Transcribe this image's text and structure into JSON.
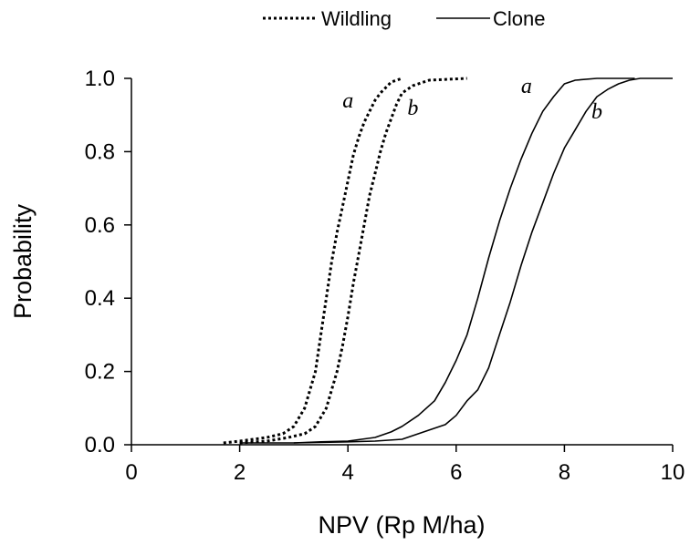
{
  "chart_data": {
    "type": "line",
    "title": "",
    "xlabel": "NPV (Rp M/ha)",
    "ylabel": "Probability",
    "xlim": [
      0,
      10
    ],
    "ylim": [
      0,
      1
    ],
    "x_ticks": [
      0,
      2,
      4,
      6,
      8,
      10
    ],
    "y_ticks": [
      "0.0",
      "0.2",
      "0.4",
      "0.6",
      "0.8",
      "1.0"
    ],
    "grid": false,
    "legend": {
      "placement": "top-center",
      "entries": [
        {
          "label": "Wildling",
          "style": "dotted"
        },
        {
          "label": "Clone",
          "style": "solid"
        }
      ]
    },
    "series": [
      {
        "name": "Wildling a",
        "group": "Wildling",
        "label": "a",
        "style": "dotted",
        "points": [
          [
            1.7,
            0.005
          ],
          [
            2.0,
            0.01
          ],
          [
            2.5,
            0.02
          ],
          [
            2.8,
            0.03
          ],
          [
            3.0,
            0.05
          ],
          [
            3.2,
            0.1
          ],
          [
            3.4,
            0.2
          ],
          [
            3.5,
            0.3
          ],
          [
            3.6,
            0.4
          ],
          [
            3.7,
            0.5
          ],
          [
            3.8,
            0.58
          ],
          [
            3.9,
            0.65
          ],
          [
            4.0,
            0.72
          ],
          [
            4.1,
            0.79
          ],
          [
            4.2,
            0.84
          ],
          [
            4.3,
            0.88
          ],
          [
            4.4,
            0.91
          ],
          [
            4.5,
            0.94
          ],
          [
            4.6,
            0.96
          ],
          [
            4.7,
            0.975
          ],
          [
            4.8,
            0.99
          ],
          [
            4.9,
            0.995
          ],
          [
            5.0,
            1.0
          ]
        ]
      },
      {
        "name": "Wildling b",
        "group": "Wildling",
        "label": "b",
        "style": "dotted",
        "points": [
          [
            2.0,
            0.005
          ],
          [
            2.5,
            0.01
          ],
          [
            2.9,
            0.02
          ],
          [
            3.2,
            0.03
          ],
          [
            3.4,
            0.05
          ],
          [
            3.6,
            0.1
          ],
          [
            3.8,
            0.2
          ],
          [
            3.9,
            0.27
          ],
          [
            4.0,
            0.35
          ],
          [
            4.1,
            0.44
          ],
          [
            4.2,
            0.52
          ],
          [
            4.3,
            0.6
          ],
          [
            4.4,
            0.68
          ],
          [
            4.5,
            0.74
          ],
          [
            4.6,
            0.8
          ],
          [
            4.7,
            0.85
          ],
          [
            4.8,
            0.89
          ],
          [
            4.9,
            0.93
          ],
          [
            5.0,
            0.96
          ],
          [
            5.2,
            0.98
          ],
          [
            5.5,
            0.995
          ],
          [
            6.2,
            1.0
          ]
        ]
      },
      {
        "name": "Clone a",
        "group": "Clone",
        "label": "a",
        "style": "solid",
        "points": [
          [
            2.0,
            0.005
          ],
          [
            3.0,
            0.005
          ],
          [
            3.5,
            0.008
          ],
          [
            4.0,
            0.01
          ],
          [
            4.5,
            0.02
          ],
          [
            4.8,
            0.035
          ],
          [
            5.0,
            0.05
          ],
          [
            5.3,
            0.08
          ],
          [
            5.6,
            0.12
          ],
          [
            5.8,
            0.17
          ],
          [
            6.0,
            0.23
          ],
          [
            6.2,
            0.3
          ],
          [
            6.4,
            0.4
          ],
          [
            6.6,
            0.51
          ],
          [
            6.8,
            0.61
          ],
          [
            7.0,
            0.7
          ],
          [
            7.2,
            0.78
          ],
          [
            7.4,
            0.85
          ],
          [
            7.6,
            0.91
          ],
          [
            7.8,
            0.95
          ],
          [
            8.0,
            0.985
          ],
          [
            8.2,
            0.995
          ],
          [
            8.6,
            1.0
          ],
          [
            9.3,
            1.0
          ]
        ]
      },
      {
        "name": "Clone b",
        "group": "Clone",
        "label": "b",
        "style": "solid",
        "points": [
          [
            3.0,
            0.005
          ],
          [
            4.0,
            0.008
          ],
          [
            4.5,
            0.01
          ],
          [
            5.0,
            0.015
          ],
          [
            5.5,
            0.04
          ],
          [
            5.8,
            0.055
          ],
          [
            6.0,
            0.08
          ],
          [
            6.2,
            0.12
          ],
          [
            6.4,
            0.15
          ],
          [
            6.6,
            0.21
          ],
          [
            6.8,
            0.3
          ],
          [
            7.0,
            0.39
          ],
          [
            7.2,
            0.49
          ],
          [
            7.4,
            0.58
          ],
          [
            7.6,
            0.66
          ],
          [
            7.8,
            0.74
          ],
          [
            8.0,
            0.81
          ],
          [
            8.2,
            0.86
          ],
          [
            8.4,
            0.91
          ],
          [
            8.6,
            0.95
          ],
          [
            8.8,
            0.97
          ],
          [
            9.0,
            0.985
          ],
          [
            9.2,
            0.995
          ],
          [
            9.4,
            1.0
          ],
          [
            10.0,
            1.0
          ]
        ]
      }
    ],
    "curve_labels": [
      {
        "text": "a",
        "series": "Wildling a",
        "x": 4.0,
        "y": 0.92
      },
      {
        "text": "b",
        "series": "Wildling b",
        "x": 5.2,
        "y": 0.9
      },
      {
        "text": "a",
        "series": "Clone a",
        "x": 7.3,
        "y": 0.96
      },
      {
        "text": "b",
        "series": "Clone b",
        "x": 8.6,
        "y": 0.89
      }
    ]
  }
}
